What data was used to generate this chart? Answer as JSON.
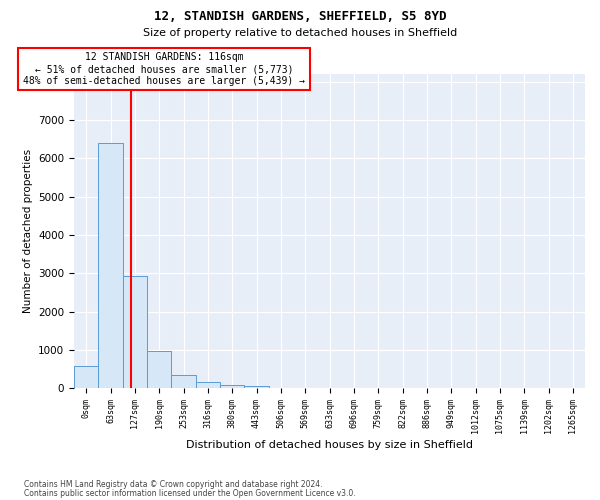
{
  "title1": "12, STANDISH GARDENS, SHEFFIELD, S5 8YD",
  "title2": "Size of property relative to detached houses in Sheffield",
  "xlabel": "Distribution of detached houses by size in Sheffield",
  "ylabel": "Number of detached properties",
  "bar_categories": [
    "0sqm",
    "63sqm",
    "127sqm",
    "190sqm",
    "253sqm",
    "316sqm",
    "380sqm",
    "443sqm",
    "506sqm",
    "569sqm",
    "633sqm",
    "696sqm",
    "759sqm",
    "822sqm",
    "886sqm",
    "949sqm",
    "1012sqm",
    "1075sqm",
    "1139sqm",
    "1202sqm",
    "1265sqm"
  ],
  "bar_values": [
    580,
    6400,
    2920,
    980,
    360,
    160,
    90,
    55,
    0,
    0,
    0,
    0,
    0,
    0,
    0,
    0,
    0,
    0,
    0,
    0,
    0
  ],
  "bar_color": "#d6e8f7",
  "bar_edge_color": "#5b9bd5",
  "vline_x_idx": 1.82,
  "vline_color": "red",
  "annotation_text": "12 STANDISH GARDENS: 116sqm\n← 51% of detached houses are smaller (5,773)\n48% of semi-detached houses are larger (5,439) →",
  "annotation_box_color": "white",
  "annotation_box_edge_color": "red",
  "ylim": [
    0,
    8200
  ],
  "yticks": [
    0,
    1000,
    2000,
    3000,
    4000,
    5000,
    6000,
    7000,
    8000
  ],
  "footnote1": "Contains HM Land Registry data © Crown copyright and database right 2024.",
  "footnote2": "Contains public sector information licensed under the Open Government Licence v3.0.",
  "plot_bg_color": "#e8eef8",
  "fig_bg_color": "#ffffff"
}
